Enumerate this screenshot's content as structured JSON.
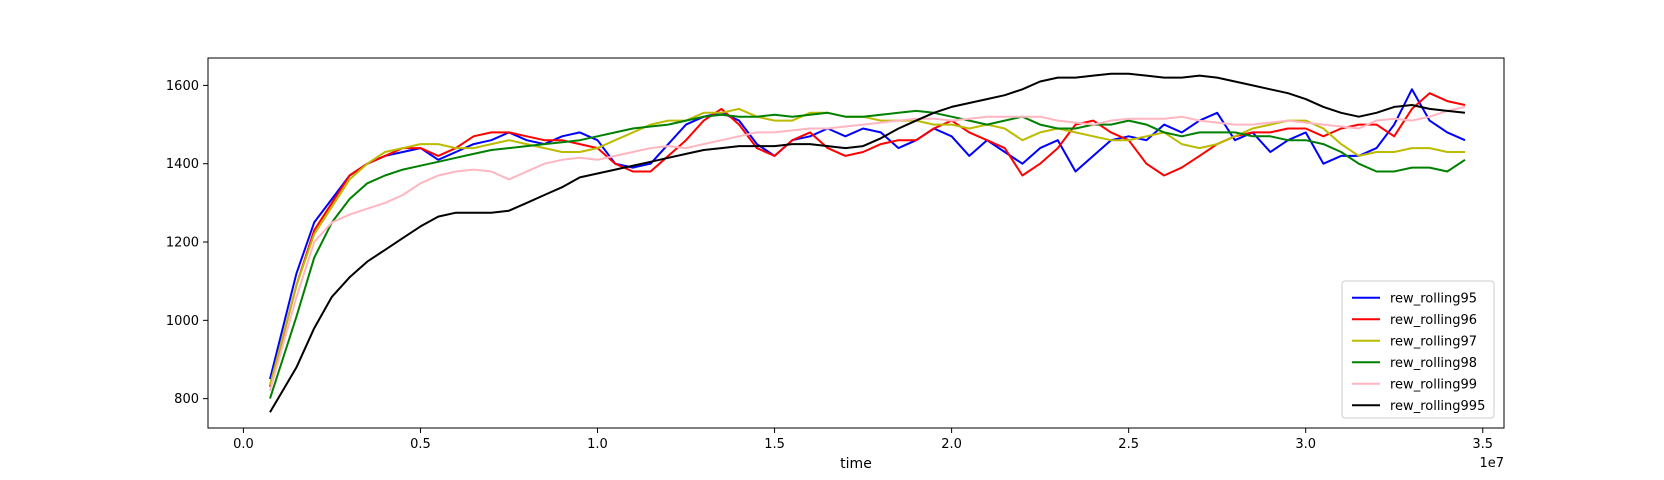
{
  "chart_data": {
    "type": "line",
    "title": "",
    "xlabel": "time",
    "ylabel": "",
    "x_offset_label": "1e7",
    "xlim": [
      -1000000,
      35600000
    ],
    "ylim": [
      725,
      1670
    ],
    "x_ticks": [
      0,
      5000000,
      10000000,
      15000000,
      20000000,
      25000000,
      30000000,
      35000000
    ],
    "x_tick_labels": [
      "0.0",
      "0.5",
      "1.0",
      "1.5",
      "2.0",
      "2.5",
      "3.0",
      "3.5"
    ],
    "y_ticks": [
      800,
      1000,
      1200,
      1400,
      1600
    ],
    "y_tick_labels": [
      "800",
      "1000",
      "1200",
      "1400",
      "1600"
    ],
    "grid": false,
    "legend_position": "lower-right",
    "x": [
      750000,
      1500000,
      2000000,
      2500000,
      3000000,
      3500000,
      4000000,
      4500000,
      5000000,
      5500000,
      6000000,
      6500000,
      7000000,
      7500000,
      8000000,
      8500000,
      9000000,
      9500000,
      10000000,
      10500000,
      11000000,
      11500000,
      12000000,
      12500000,
      13000000,
      13500000,
      14000000,
      14500000,
      15000000,
      15500000,
      16000000,
      16500000,
      17000000,
      17500000,
      18000000,
      18500000,
      19000000,
      19500000,
      20000000,
      20500000,
      21000000,
      21500000,
      22000000,
      22500000,
      23000000,
      23500000,
      24000000,
      24500000,
      25000000,
      25500000,
      26000000,
      26500000,
      27000000,
      27500000,
      28000000,
      28500000,
      29000000,
      29500000,
      30000000,
      30500000,
      31000000,
      31500000,
      32000000,
      32500000,
      33000000,
      33500000,
      34000000,
      34500000
    ],
    "series": [
      {
        "name": "rew_rolling95",
        "color": "#0000ff",
        "values": [
          850,
          1120,
          1250,
          1310,
          1370,
          1400,
          1420,
          1430,
          1440,
          1410,
          1430,
          1450,
          1460,
          1480,
          1460,
          1450,
          1470,
          1480,
          1460,
          1400,
          1390,
          1400,
          1450,
          1500,
          1520,
          1530,
          1510,
          1450,
          1420,
          1460,
          1470,
          1490,
          1470,
          1490,
          1480,
          1440,
          1460,
          1490,
          1470,
          1420,
          1460,
          1430,
          1400,
          1440,
          1460,
          1380,
          1420,
          1460,
          1470,
          1460,
          1500,
          1480,
          1510,
          1530,
          1460,
          1480,
          1430,
          1460,
          1480,
          1400,
          1420,
          1420,
          1440,
          1500,
          1590,
          1510,
          1480,
          1460
        ]
      },
      {
        "name": "rew_rolling96",
        "color": "#ff0000",
        "values": [
          830,
          1090,
          1230,
          1300,
          1370,
          1400,
          1420,
          1440,
          1440,
          1420,
          1440,
          1470,
          1480,
          1480,
          1470,
          1460,
          1460,
          1450,
          1440,
          1400,
          1380,
          1380,
          1420,
          1460,
          1510,
          1540,
          1500,
          1440,
          1420,
          1460,
          1480,
          1440,
          1420,
          1430,
          1450,
          1460,
          1460,
          1490,
          1510,
          1480,
          1460,
          1440,
          1370,
          1400,
          1440,
          1500,
          1510,
          1480,
          1460,
          1400,
          1370,
          1390,
          1420,
          1450,
          1470,
          1480,
          1480,
          1490,
          1490,
          1470,
          1490,
          1500,
          1500,
          1470,
          1540,
          1580,
          1560,
          1550
        ]
      },
      {
        "name": "rew_rolling97",
        "color": "#bbbb00",
        "values": [
          835,
          1090,
          1220,
          1290,
          1360,
          1400,
          1430,
          1440,
          1450,
          1450,
          1440,
          1440,
          1450,
          1460,
          1450,
          1440,
          1430,
          1430,
          1440,
          1460,
          1480,
          1500,
          1510,
          1510,
          1530,
          1530,
          1540,
          1520,
          1510,
          1510,
          1530,
          1530,
          1520,
          1520,
          1510,
          1510,
          1510,
          1500,
          1500,
          1490,
          1500,
          1490,
          1460,
          1480,
          1490,
          1480,
          1470,
          1460,
          1460,
          1470,
          1480,
          1450,
          1440,
          1450,
          1470,
          1490,
          1500,
          1510,
          1510,
          1490,
          1450,
          1420,
          1430,
          1430,
          1440,
          1440,
          1430,
          1430
        ]
      },
      {
        "name": "rew_rolling98",
        "color": "#008000",
        "values": [
          800,
          1010,
          1160,
          1250,
          1310,
          1350,
          1370,
          1385,
          1395,
          1405,
          1415,
          1425,
          1435,
          1440,
          1445,
          1450,
          1455,
          1460,
          1470,
          1480,
          1490,
          1495,
          1500,
          1510,
          1520,
          1525,
          1520,
          1520,
          1525,
          1520,
          1525,
          1530,
          1520,
          1520,
          1525,
          1530,
          1535,
          1530,
          1520,
          1510,
          1500,
          1510,
          1520,
          1500,
          1490,
          1490,
          1500,
          1500,
          1510,
          1500,
          1480,
          1470,
          1480,
          1480,
          1480,
          1470,
          1470,
          1460,
          1460,
          1450,
          1430,
          1400,
          1380,
          1380,
          1390,
          1390,
          1380,
          1410
        ]
      },
      {
        "name": "rew_rolling99",
        "color": "#ffb6c1",
        "values": [
          820,
          1060,
          1200,
          1250,
          1270,
          1285,
          1300,
          1320,
          1350,
          1370,
          1380,
          1385,
          1380,
          1360,
          1380,
          1400,
          1410,
          1415,
          1410,
          1420,
          1430,
          1440,
          1445,
          1440,
          1450,
          1460,
          1470,
          1480,
          1480,
          1485,
          1490,
          1490,
          1495,
          1500,
          1505,
          1510,
          1515,
          1515,
          1510,
          1515,
          1520,
          1520,
          1520,
          1520,
          1510,
          1505,
          1500,
          1510,
          1515,
          1515,
          1515,
          1520,
          1510,
          1505,
          1500,
          1500,
          1505,
          1510,
          1505,
          1500,
          1495,
          1490,
          1510,
          1515,
          1510,
          1520,
          1535,
          1545
        ]
      },
      {
        "name": "rew_rolling995",
        "color": "#000000",
        "values": [
          765,
          880,
          980,
          1060,
          1110,
          1150,
          1180,
          1210,
          1240,
          1265,
          1275,
          1275,
          1275,
          1280,
          1300,
          1320,
          1340,
          1365,
          1375,
          1385,
          1395,
          1405,
          1415,
          1425,
          1435,
          1440,
          1445,
          1445,
          1445,
          1450,
          1450,
          1445,
          1440,
          1445,
          1465,
          1490,
          1510,
          1530,
          1545,
          1555,
          1565,
          1575,
          1590,
          1610,
          1620,
          1620,
          1625,
          1630,
          1630,
          1625,
          1620,
          1620,
          1625,
          1620,
          1610,
          1600,
          1590,
          1580,
          1565,
          1545,
          1530,
          1520,
          1530,
          1545,
          1550,
          1540,
          1535,
          1530
        ]
      }
    ]
  }
}
